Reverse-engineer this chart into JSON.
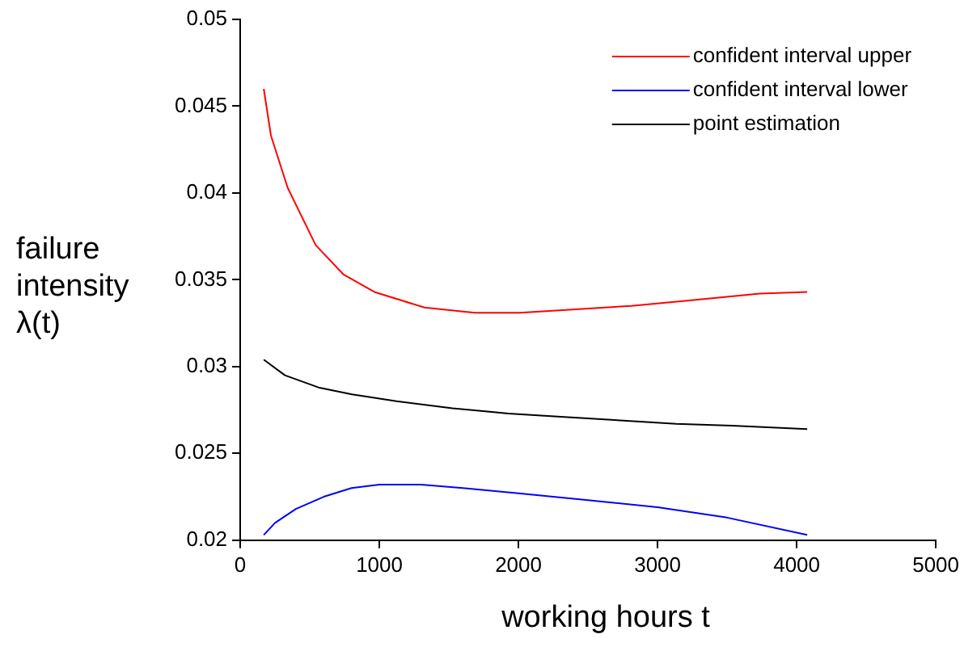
{
  "chart_data": {
    "type": "line",
    "xlabel": "working hours t",
    "ylabel": "failure intensity λ(t)",
    "xlim": [
      0,
      5000
    ],
    "xticks": [
      0,
      1000,
      2000,
      3000,
      4000,
      5000
    ],
    "ylim": [
      0.02,
      0.05
    ],
    "yticks": [
      0.02,
      0.025,
      0.03,
      0.035,
      0.04,
      0.045,
      0.05
    ],
    "grid": false,
    "legend": "top right",
    "marker": "none",
    "line_style": "solid",
    "series": [
      {
        "name": "confident interval upper",
        "color": "#ff0000",
        "x": [
          169,
          221,
          341,
          542,
          743,
          964,
          1325,
          1687,
          2008,
          2410,
          2811,
          3213,
          3735,
          4076
        ],
        "values": [
          0.046,
          0.0433,
          0.0403,
          0.037,
          0.0353,
          0.0343,
          0.0334,
          0.0331,
          0.0331,
          0.0333,
          0.0335,
          0.0338,
          0.0342,
          0.0343
        ]
      },
      {
        "name": "confident interval lower",
        "color": "#0000ff",
        "x": [
          169,
          250,
          400,
          600,
          800,
          1000,
          1300,
          1600,
          2000,
          2500,
          3000,
          3500,
          4076
        ],
        "values": [
          0.0203,
          0.021,
          0.0218,
          0.0225,
          0.023,
          0.0232,
          0.0232,
          0.023,
          0.0227,
          0.0223,
          0.0219,
          0.0213,
          0.0203
        ]
      },
      {
        "name": "point estimation",
        "color": "#000000",
        "x": [
          169,
          321,
          562,
          803,
          1124,
          1526,
          1928,
          2329,
          2731,
          3133,
          3534,
          4076
        ],
        "values": [
          0.0304,
          0.0295,
          0.0288,
          0.0284,
          0.028,
          0.0276,
          0.0273,
          0.0271,
          0.0269,
          0.0267,
          0.0266,
          0.0264
        ]
      }
    ]
  }
}
